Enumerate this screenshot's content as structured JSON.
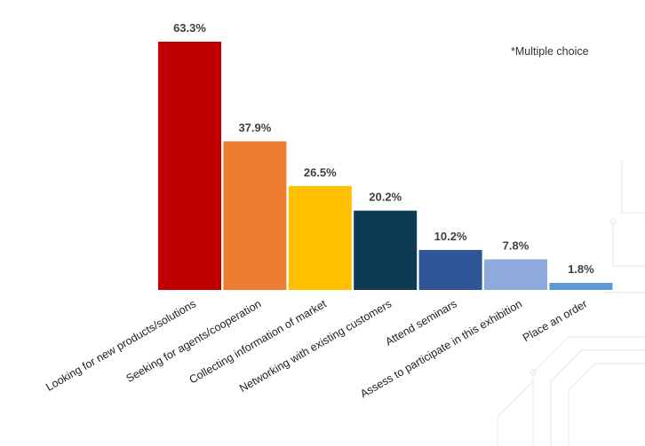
{
  "chart_data": {
    "type": "bar",
    "title": "",
    "xlabel": "",
    "ylabel": "",
    "ylim": [
      0,
      63.3
    ],
    "grid": false,
    "legend": "none",
    "annotation": "*Multiple choice",
    "categories": [
      "Looking for new products/solutions",
      "Seeking for agents/cooperation",
      "Collecting information of market",
      "Networking with existing customers",
      "Attend seminars",
      "Assess to participate in this exhibition",
      "Place an order"
    ],
    "values": [
      63.3,
      37.9,
      26.5,
      20.2,
      10.2,
      7.8,
      1.8
    ],
    "value_labels": [
      "63.3%",
      "37.9%",
      "26.5%",
      "20.2%",
      "10.2%",
      "7.8%",
      "1.8%"
    ],
    "colors": [
      "#c00000",
      "#ed7d31",
      "#ffc000",
      "#0d3b54",
      "#2f5597",
      "#8faadc",
      "#5b9bd5"
    ]
  }
}
